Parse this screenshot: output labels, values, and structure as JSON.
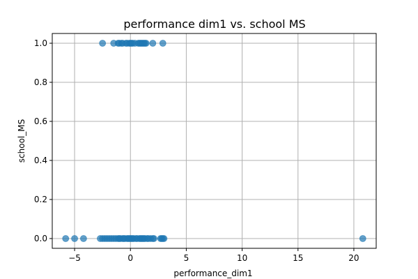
{
  "chart_data": {
    "type": "scatter",
    "title": "performance dim1 vs. school MS",
    "xlabel": "performance_dim1",
    "ylabel": "school_MS",
    "xlim": [
      -7,
      22
    ],
    "ylim": [
      -0.05,
      1.05
    ],
    "xticks": [
      -5,
      0,
      5,
      10,
      15,
      20
    ],
    "yticks": [
      0.0,
      0.2,
      0.4,
      0.6,
      0.8,
      1.0
    ],
    "xtick_labels": [
      "−5",
      "0",
      "5",
      "10",
      "15",
      "20"
    ],
    "ytick_labels": [
      "0.0",
      "0.2",
      "0.4",
      "0.6",
      "0.8",
      "1.0"
    ],
    "grid": true,
    "marker_color": "#1f77b4",
    "marker_alpha": 0.7,
    "points": [
      {
        "x": -2.5,
        "y": 1
      },
      {
        "x": -1.5,
        "y": 1
      },
      {
        "x": -1.1,
        "y": 1
      },
      {
        "x": -1.0,
        "y": 1
      },
      {
        "x": -0.8,
        "y": 1
      },
      {
        "x": -0.7,
        "y": 1
      },
      {
        "x": -0.4,
        "y": 1
      },
      {
        "x": -0.3,
        "y": 1
      },
      {
        "x": -0.1,
        "y": 1
      },
      {
        "x": 0.0,
        "y": 1
      },
      {
        "x": 0.1,
        "y": 1
      },
      {
        "x": 0.2,
        "y": 1
      },
      {
        "x": 0.4,
        "y": 1
      },
      {
        "x": 0.7,
        "y": 1
      },
      {
        "x": 0.8,
        "y": 1
      },
      {
        "x": 0.9,
        "y": 1
      },
      {
        "x": 1.0,
        "y": 1
      },
      {
        "x": 1.1,
        "y": 1
      },
      {
        "x": 1.2,
        "y": 1
      },
      {
        "x": 1.3,
        "y": 1
      },
      {
        "x": 1.4,
        "y": 1
      },
      {
        "x": 2.0,
        "y": 1
      },
      {
        "x": 2.9,
        "y": 1
      },
      {
        "x": -5.8,
        "y": 0
      },
      {
        "x": -5.0,
        "y": 0
      },
      {
        "x": -4.2,
        "y": 0
      },
      {
        "x": -2.7,
        "y": 0
      },
      {
        "x": -2.5,
        "y": 0
      },
      {
        "x": -2.3,
        "y": 0
      },
      {
        "x": -2.1,
        "y": 0
      },
      {
        "x": -1.9,
        "y": 0
      },
      {
        "x": -1.7,
        "y": 0
      },
      {
        "x": -1.5,
        "y": 0
      },
      {
        "x": -1.3,
        "y": 0
      },
      {
        "x": -1.1,
        "y": 0
      },
      {
        "x": -1.0,
        "y": 0
      },
      {
        "x": -0.9,
        "y": 0
      },
      {
        "x": -0.7,
        "y": 0
      },
      {
        "x": -0.6,
        "y": 0
      },
      {
        "x": -0.5,
        "y": 0
      },
      {
        "x": -0.3,
        "y": 0
      },
      {
        "x": -0.2,
        "y": 0
      },
      {
        "x": -0.1,
        "y": 0
      },
      {
        "x": 0.0,
        "y": 0
      },
      {
        "x": 0.1,
        "y": 0
      },
      {
        "x": 0.2,
        "y": 0
      },
      {
        "x": 0.3,
        "y": 0
      },
      {
        "x": 0.5,
        "y": 0
      },
      {
        "x": 0.6,
        "y": 0
      },
      {
        "x": 0.8,
        "y": 0
      },
      {
        "x": 0.9,
        "y": 0
      },
      {
        "x": 1.0,
        "y": 0
      },
      {
        "x": 1.1,
        "y": 0
      },
      {
        "x": 1.2,
        "y": 0
      },
      {
        "x": 1.3,
        "y": 0
      },
      {
        "x": 1.5,
        "y": 0
      },
      {
        "x": 1.6,
        "y": 0
      },
      {
        "x": 1.8,
        "y": 0
      },
      {
        "x": 2.0,
        "y": 0
      },
      {
        "x": 2.1,
        "y": 0
      },
      {
        "x": 2.7,
        "y": 0
      },
      {
        "x": 2.8,
        "y": 0
      },
      {
        "x": 2.9,
        "y": 0
      },
      {
        "x": 3.0,
        "y": 0
      },
      {
        "x": 20.8,
        "y": 0
      }
    ]
  }
}
